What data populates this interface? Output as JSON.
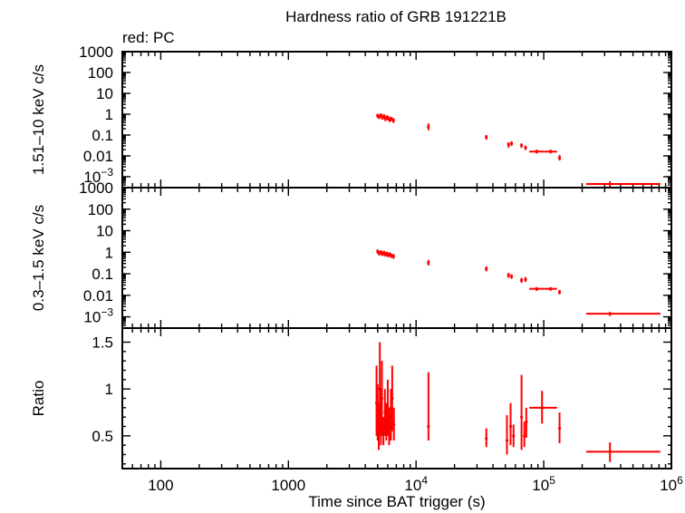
{
  "title": "Hardness ratio of GRB 191221B",
  "legend": "red: PC",
  "colors": {
    "data": "#ff0000",
    "axes": "#000000",
    "background": "#ffffff"
  },
  "chart_data": [
    {
      "type": "scatter",
      "panel": "hard",
      "ylabel": "1.51–10 keV c/s",
      "xscale": "log",
      "yscale": "log",
      "xlim": [
        50,
        1000000
      ],
      "ylim": [
        0.0003,
        1000
      ],
      "y_ticks": [
        {
          "v": 1000,
          "t": "1000"
        },
        {
          "v": 100,
          "t": "100"
        },
        {
          "v": 10,
          "t": "10"
        },
        {
          "v": 1,
          "t": "1"
        },
        {
          "v": 0.1,
          "t": "0.1"
        },
        {
          "v": 0.01,
          "t": "0.01"
        },
        {
          "v": 0.001,
          "t": "10",
          "sup": "−3"
        }
      ],
      "points": [
        {
          "x": 5000,
          "xlo": 4960,
          "xhi": 5040,
          "y": 0.85,
          "ylo": 0.65,
          "yhi": 1.05
        },
        {
          "x": 5150,
          "xlo": 5110,
          "xhi": 5190,
          "y": 0.75,
          "ylo": 0.58,
          "yhi": 0.95
        },
        {
          "x": 5300,
          "xlo": 5260,
          "xhi": 5340,
          "y": 0.9,
          "ylo": 0.7,
          "yhi": 1.1
        },
        {
          "x": 5450,
          "xlo": 5410,
          "xhi": 5490,
          "y": 0.7,
          "ylo": 0.54,
          "yhi": 0.88
        },
        {
          "x": 5600,
          "xlo": 5560,
          "xhi": 5640,
          "y": 0.8,
          "ylo": 0.62,
          "yhi": 1.0
        },
        {
          "x": 5750,
          "xlo": 5710,
          "xhi": 5790,
          "y": 0.6,
          "ylo": 0.46,
          "yhi": 0.76
        },
        {
          "x": 5900,
          "xlo": 5860,
          "xhi": 5940,
          "y": 0.7,
          "ylo": 0.54,
          "yhi": 0.88
        },
        {
          "x": 6050,
          "xlo": 6010,
          "xhi": 6090,
          "y": 0.65,
          "ylo": 0.5,
          "yhi": 0.82
        },
        {
          "x": 6200,
          "xlo": 6160,
          "xhi": 6240,
          "y": 0.55,
          "ylo": 0.42,
          "yhi": 0.7
        },
        {
          "x": 6400,
          "xlo": 6350,
          "xhi": 6450,
          "y": 0.6,
          "ylo": 0.46,
          "yhi": 0.76
        },
        {
          "x": 6650,
          "xlo": 6600,
          "xhi": 6700,
          "y": 0.5,
          "ylo": 0.38,
          "yhi": 0.64
        },
        {
          "x": 12500,
          "xlo": 12300,
          "xhi": 12700,
          "y": 0.25,
          "ylo": 0.17,
          "yhi": 0.36
        },
        {
          "x": 35500,
          "xlo": 35000,
          "xhi": 36000,
          "y": 0.08,
          "ylo": 0.06,
          "yhi": 0.1
        },
        {
          "x": 53000,
          "xlo": 52000,
          "xhi": 54000,
          "y": 0.035,
          "ylo": 0.025,
          "yhi": 0.045
        },
        {
          "x": 56000,
          "xlo": 55000,
          "xhi": 57000,
          "y": 0.04,
          "ylo": 0.03,
          "yhi": 0.05
        },
        {
          "x": 67000,
          "xlo": 66000,
          "xhi": 68000,
          "y": 0.032,
          "ylo": 0.024,
          "yhi": 0.04
        },
        {
          "x": 72000,
          "xlo": 71000,
          "xhi": 73000,
          "y": 0.025,
          "ylo": 0.019,
          "yhi": 0.031
        },
        {
          "x": 88000,
          "xlo": 77000,
          "xhi": 100000,
          "y": 0.016,
          "ylo": 0.013,
          "yhi": 0.02
        },
        {
          "x": 113000,
          "xlo": 100000,
          "xhi": 127000,
          "y": 0.016,
          "ylo": 0.013,
          "yhi": 0.02
        },
        {
          "x": 133000,
          "xlo": 130000,
          "xhi": 136000,
          "y": 0.008,
          "ylo": 0.006,
          "yhi": 0.011
        },
        {
          "x": 330000,
          "xlo": 215000,
          "xhi": 820000,
          "y": 0.00045,
          "ylo": 0.0003,
          "yhi": 0.0006
        }
      ]
    },
    {
      "type": "scatter",
      "panel": "soft",
      "ylabel": "0.3–1.5 keV c/s",
      "xscale": "log",
      "yscale": "log",
      "xlim": [
        50,
        1000000
      ],
      "ylim": [
        0.0003,
        1000
      ],
      "y_ticks": [
        {
          "v": 1000,
          "t": "1000"
        },
        {
          "v": 100,
          "t": "100"
        },
        {
          "v": 10,
          "t": "10"
        },
        {
          "v": 1,
          "t": "1"
        },
        {
          "v": 0.1,
          "t": "0.1"
        },
        {
          "v": 0.01,
          "t": "0.01"
        },
        {
          "v": 0.001,
          "t": "10",
          "sup": "−3"
        }
      ],
      "points": [
        {
          "x": 5000,
          "xlo": 4960,
          "xhi": 5040,
          "y": 1.1,
          "ylo": 0.85,
          "yhi": 1.35
        },
        {
          "x": 5150,
          "xlo": 5110,
          "xhi": 5190,
          "y": 0.9,
          "ylo": 0.7,
          "yhi": 1.1
        },
        {
          "x": 5300,
          "xlo": 5260,
          "xhi": 5340,
          "y": 1.0,
          "ylo": 0.78,
          "yhi": 1.25
        },
        {
          "x": 5450,
          "xlo": 5410,
          "xhi": 5490,
          "y": 0.85,
          "ylo": 0.66,
          "yhi": 1.05
        },
        {
          "x": 5600,
          "xlo": 5560,
          "xhi": 5640,
          "y": 0.95,
          "ylo": 0.74,
          "yhi": 1.18
        },
        {
          "x": 5750,
          "xlo": 5710,
          "xhi": 5790,
          "y": 0.8,
          "ylo": 0.62,
          "yhi": 1.0
        },
        {
          "x": 5900,
          "xlo": 5860,
          "xhi": 5940,
          "y": 0.85,
          "ylo": 0.66,
          "yhi": 1.05
        },
        {
          "x": 6050,
          "xlo": 6010,
          "xhi": 6090,
          "y": 0.75,
          "ylo": 0.58,
          "yhi": 0.94
        },
        {
          "x": 6200,
          "xlo": 6160,
          "xhi": 6240,
          "y": 0.8,
          "ylo": 0.62,
          "yhi": 1.0
        },
        {
          "x": 6400,
          "xlo": 6350,
          "xhi": 6450,
          "y": 0.7,
          "ylo": 0.54,
          "yhi": 0.88
        },
        {
          "x": 6650,
          "xlo": 6600,
          "xhi": 6700,
          "y": 0.65,
          "ylo": 0.5,
          "yhi": 0.82
        },
        {
          "x": 12500,
          "xlo": 12300,
          "xhi": 12700,
          "y": 0.33,
          "ylo": 0.24,
          "yhi": 0.44
        },
        {
          "x": 35500,
          "xlo": 35000,
          "xhi": 36000,
          "y": 0.17,
          "ylo": 0.13,
          "yhi": 0.22
        },
        {
          "x": 53000,
          "xlo": 52000,
          "xhi": 54000,
          "y": 0.085,
          "ylo": 0.065,
          "yhi": 0.11
        },
        {
          "x": 56000,
          "xlo": 55000,
          "xhi": 57000,
          "y": 0.075,
          "ylo": 0.058,
          "yhi": 0.095
        },
        {
          "x": 67000,
          "xlo": 66000,
          "xhi": 68000,
          "y": 0.05,
          "ylo": 0.038,
          "yhi": 0.065
        },
        {
          "x": 72000,
          "xlo": 71000,
          "xhi": 73000,
          "y": 0.055,
          "ylo": 0.042,
          "yhi": 0.07
        },
        {
          "x": 88000,
          "xlo": 77000,
          "xhi": 100000,
          "y": 0.02,
          "ylo": 0.016,
          "yhi": 0.024
        },
        {
          "x": 113000,
          "xlo": 100000,
          "xhi": 127000,
          "y": 0.02,
          "ylo": 0.016,
          "yhi": 0.024
        },
        {
          "x": 133000,
          "xlo": 130000,
          "xhi": 136000,
          "y": 0.014,
          "ylo": 0.011,
          "yhi": 0.018
        },
        {
          "x": 330000,
          "xlo": 215000,
          "xhi": 820000,
          "y": 0.0014,
          "ylo": 0.0011,
          "yhi": 0.0017
        }
      ]
    },
    {
      "type": "scatter",
      "panel": "ratio",
      "ylabel": "Ratio",
      "xlabel": "Time since BAT trigger (s)",
      "xscale": "log",
      "yscale": "linear",
      "xlim": [
        50,
        1000000
      ],
      "ylim": [
        0.15,
        1.65
      ],
      "y_ticks": [
        {
          "v": 1.5,
          "t": "1.5"
        },
        {
          "v": 1,
          "t": "1"
        },
        {
          "v": 0.5,
          "t": "0.5"
        }
      ],
      "x_ticks": [
        {
          "v": 100,
          "t": "100"
        },
        {
          "v": 1000,
          "t": "1000"
        },
        {
          "v": 10000,
          "t": "10",
          "sup": "4"
        },
        {
          "v": 100000,
          "t": "10",
          "sup": "5"
        },
        {
          "v": 1000000,
          "t": "10",
          "sup": "6"
        }
      ],
      "points": [
        {
          "x": 4900,
          "xlo": 4880,
          "xhi": 4920,
          "y": 0.85,
          "ylo": 0.5,
          "yhi": 1.25
        },
        {
          "x": 5000,
          "xlo": 4980,
          "xhi": 5020,
          "y": 0.75,
          "ylo": 0.45,
          "yhi": 1.05
        },
        {
          "x": 5100,
          "xlo": 5080,
          "xhi": 5120,
          "y": 0.6,
          "ylo": 0.35,
          "yhi": 0.85
        },
        {
          "x": 5200,
          "xlo": 5180,
          "xhi": 5220,
          "y": 1.0,
          "ylo": 0.5,
          "yhi": 1.5
        },
        {
          "x": 5300,
          "xlo": 5280,
          "xhi": 5320,
          "y": 0.7,
          "ylo": 0.4,
          "yhi": 1.0
        },
        {
          "x": 5400,
          "xlo": 5380,
          "xhi": 5420,
          "y": 0.9,
          "ylo": 0.5,
          "yhi": 1.3
        },
        {
          "x": 5550,
          "xlo": 5530,
          "xhi": 5570,
          "y": 0.55,
          "ylo": 0.4,
          "yhi": 0.7
        },
        {
          "x": 5700,
          "xlo": 5680,
          "xhi": 5720,
          "y": 0.75,
          "ylo": 0.5,
          "yhi": 1.0
        },
        {
          "x": 5850,
          "xlo": 5830,
          "xhi": 5870,
          "y": 0.65,
          "ylo": 0.45,
          "yhi": 0.85
        },
        {
          "x": 6000,
          "xlo": 5980,
          "xhi": 6020,
          "y": 0.8,
          "ylo": 0.5,
          "yhi": 1.1
        },
        {
          "x": 6150,
          "xlo": 6130,
          "xhi": 6170,
          "y": 0.6,
          "ylo": 0.4,
          "yhi": 0.8
        },
        {
          "x": 6350,
          "xlo": 6330,
          "xhi": 6370,
          "y": 0.7,
          "ylo": 0.45,
          "yhi": 1.0
        },
        {
          "x": 6500,
          "xlo": 6480,
          "xhi": 6520,
          "y": 0.9,
          "ylo": 0.55,
          "yhi": 1.25
        },
        {
          "x": 6700,
          "xlo": 6670,
          "xhi": 6730,
          "y": 0.62,
          "ylo": 0.45,
          "yhi": 0.8
        },
        {
          "x": 12500,
          "xlo": 12300,
          "xhi": 12700,
          "y": 0.6,
          "ylo": 0.45,
          "yhi": 1.18
        },
        {
          "x": 35500,
          "xlo": 35000,
          "xhi": 36000,
          "y": 0.47,
          "ylo": 0.38,
          "yhi": 0.58
        },
        {
          "x": 51500,
          "xlo": 51000,
          "xhi": 52000,
          "y": 0.45,
          "ylo": 0.3,
          "yhi": 0.72
        },
        {
          "x": 55000,
          "xlo": 54500,
          "xhi": 55500,
          "y": 0.6,
          "ylo": 0.4,
          "yhi": 0.85
        },
        {
          "x": 58000,
          "xlo": 57500,
          "xhi": 58500,
          "y": 0.5,
          "ylo": 0.38,
          "yhi": 0.62
        },
        {
          "x": 67000,
          "xlo": 66500,
          "xhi": 67500,
          "y": 0.7,
          "ylo": 0.35,
          "yhi": 1.15
        },
        {
          "x": 70500,
          "xlo": 70000,
          "xhi": 71000,
          "y": 0.5,
          "ylo": 0.38,
          "yhi": 0.65
        },
        {
          "x": 73000,
          "xlo": 72500,
          "xhi": 73500,
          "y": 0.65,
          "ylo": 0.48,
          "yhi": 0.8
        },
        {
          "x": 97000,
          "xlo": 77000,
          "xhi": 127000,
          "y": 0.8,
          "ylo": 0.63,
          "yhi": 0.98
        },
        {
          "x": 133000,
          "xlo": 131000,
          "xhi": 135000,
          "y": 0.58,
          "ylo": 0.42,
          "yhi": 0.75
        },
        {
          "x": 330000,
          "xlo": 215000,
          "xhi": 820000,
          "y": 0.33,
          "ylo": 0.22,
          "yhi": 0.43
        }
      ]
    }
  ]
}
